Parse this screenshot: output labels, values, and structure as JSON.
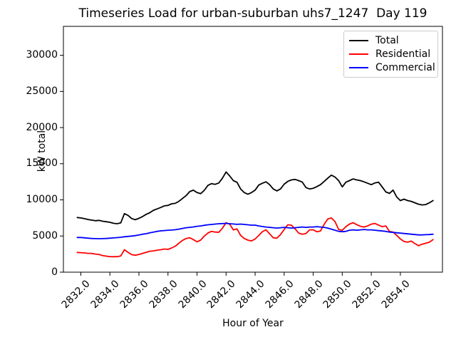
{
  "chart_data": {
    "type": "line",
    "title": "Timeseries Load for urban-suburban uhs7_1247  Day 119",
    "xlabel": "Hour of Year",
    "ylabel": "kW total",
    "xlim": [
      2830.8,
      2856.9
    ],
    "ylim": [
      0,
      34000
    ],
    "grid": false,
    "xticks": [
      2832,
      2834,
      2836,
      2838,
      2840,
      2842,
      2844,
      2846,
      2848,
      2850,
      2852,
      2854
    ],
    "xtick_labels": [
      "2832.0",
      "2834.0",
      "2836.0",
      "2838.0",
      "2840.0",
      "2842.0",
      "2844.0",
      "2846.0",
      "2848.0",
      "2850.0",
      "2852.0",
      "2854.0"
    ],
    "yticks": [
      0,
      5000,
      10000,
      15000,
      20000,
      25000,
      30000
    ],
    "ytick_labels": [
      "0",
      "5000",
      "10000",
      "15000",
      "20000",
      "25000",
      "30000"
    ],
    "legend": {
      "position": "upper right",
      "entries": [
        {
          "label": "Total",
          "color": "#000000"
        },
        {
          "label": "Residential",
          "color": "#ff0000"
        },
        {
          "label": "Commercial",
          "color": "#0000ff"
        }
      ]
    },
    "axis_color": "#000000",
    "x": [
      2831.75,
      2832,
      2832.25,
      2832.5,
      2832.75,
      2833,
      2833.25,
      2833.5,
      2833.75,
      2834,
      2834.25,
      2834.5,
      2834.75,
      2835,
      2835.25,
      2835.5,
      2835.75,
      2836,
      2836.25,
      2836.5,
      2836.75,
      2837,
      2837.25,
      2837.5,
      2837.75,
      2838,
      2838.25,
      2838.5,
      2838.75,
      2839,
      2839.25,
      2839.5,
      2839.75,
      2840,
      2840.25,
      2840.5,
      2840.75,
      2841,
      2841.25,
      2841.5,
      2841.75,
      2842,
      2842.25,
      2842.5,
      2842.75,
      2843,
      2843.25,
      2843.5,
      2843.75,
      2844,
      2844.25,
      2844.5,
      2844.75,
      2845,
      2845.25,
      2845.5,
      2845.75,
      2846,
      2846.25,
      2846.5,
      2846.75,
      2847,
      2847.25,
      2847.5,
      2847.75,
      2848,
      2848.25,
      2848.5,
      2848.75,
      2849,
      2849.25,
      2849.5,
      2849.75,
      2850,
      2850.25,
      2850.5,
      2850.75,
      2851,
      2851.25,
      2851.5,
      2851.75,
      2852,
      2852.25,
      2852.5,
      2852.75,
      2853,
      2853.25,
      2853.5,
      2853.75,
      2854,
      2854.25,
      2854.5,
      2854.75,
      2855,
      2855.25,
      2855.5,
      2855.75,
      2856,
      2856.25
    ],
    "series": [
      {
        "name": "Total",
        "color": "#000000",
        "values": [
          7560,
          7500,
          7400,
          7280,
          7200,
          7120,
          7160,
          7050,
          6980,
          6900,
          6760,
          6700,
          6820,
          8100,
          7850,
          7420,
          7250,
          7450,
          7700,
          8000,
          8230,
          8560,
          8750,
          8950,
          9180,
          9230,
          9460,
          9520,
          9800,
          10190,
          10580,
          11150,
          11340,
          11010,
          10860,
          11320,
          12000,
          12250,
          12150,
          12340,
          13000,
          13870,
          13300,
          12660,
          12440,
          11510,
          11010,
          10780,
          11010,
          11350,
          12050,
          12300,
          12500,
          12100,
          11510,
          11240,
          11510,
          12170,
          12560,
          12760,
          12830,
          12660,
          12460,
          11700,
          11510,
          11600,
          11840,
          12100,
          12550,
          13000,
          13420,
          13160,
          12660,
          11800,
          12450,
          12660,
          12900,
          12760,
          12660,
          12500,
          12300,
          12100,
          12350,
          12450,
          11800,
          11100,
          10900,
          11350,
          10400,
          9900,
          10100,
          9900,
          9800,
          9600,
          9400,
          9300,
          9350,
          9600,
          9900
        ]
      },
      {
        "name": "Residential",
        "color": "#ff0000",
        "values": [
          2730,
          2700,
          2660,
          2600,
          2600,
          2500,
          2450,
          2300,
          2220,
          2150,
          2140,
          2150,
          2250,
          3100,
          2750,
          2420,
          2350,
          2450,
          2600,
          2750,
          2900,
          2950,
          3050,
          3100,
          3200,
          3150,
          3350,
          3600,
          4000,
          4400,
          4660,
          4760,
          4500,
          4200,
          4430,
          4990,
          5420,
          5650,
          5550,
          5520,
          6080,
          6840,
          6640,
          5850,
          5980,
          5100,
          4660,
          4430,
          4330,
          4590,
          5090,
          5600,
          5850,
          5300,
          4760,
          4700,
          5200,
          5900,
          6550,
          6500,
          6000,
          5400,
          5250,
          5350,
          5850,
          5850,
          5600,
          5700,
          6600,
          7350,
          7500,
          7000,
          5900,
          5800,
          6300,
          6650,
          6840,
          6570,
          6350,
          6250,
          6400,
          6640,
          6740,
          6510,
          6300,
          6400,
          5650,
          5550,
          5100,
          4600,
          4250,
          4150,
          4300,
          3950,
          3670,
          3870,
          4000,
          4150,
          4500
        ]
      },
      {
        "name": "Commercial",
        "color": "#0000ff",
        "values": [
          4800,
          4800,
          4750,
          4700,
          4660,
          4640,
          4630,
          4640,
          4660,
          4700,
          4740,
          4780,
          4830,
          4900,
          4950,
          5000,
          5060,
          5150,
          5250,
          5320,
          5450,
          5550,
          5650,
          5720,
          5760,
          5800,
          5820,
          5870,
          5950,
          6050,
          6150,
          6200,
          6260,
          6350,
          6400,
          6480,
          6550,
          6600,
          6650,
          6700,
          6720,
          6750,
          6700,
          6660,
          6610,
          6650,
          6600,
          6550,
          6500,
          6500,
          6400,
          6320,
          6250,
          6200,
          6150,
          6100,
          6150,
          6200,
          6150,
          6100,
          6150,
          6200,
          6250,
          6200,
          6250,
          6250,
          6300,
          6250,
          6200,
          6100,
          5950,
          5800,
          5650,
          5600,
          5650,
          5800,
          5850,
          5800,
          5850,
          5900,
          5850,
          5850,
          5800,
          5750,
          5700,
          5650,
          5550,
          5500,
          5450,
          5400,
          5350,
          5300,
          5250,
          5200,
          5150,
          5150,
          5180,
          5200,
          5250
        ]
      }
    ]
  }
}
